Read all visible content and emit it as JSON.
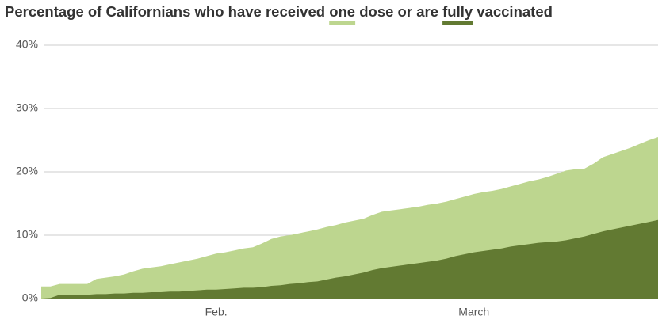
{
  "chart_data": {
    "type": "area",
    "title": "Percentage of Californians who have received one dose or are fully vaccinated",
    "categories": [
      null,
      null,
      null,
      null,
      null,
      null,
      null,
      null,
      null,
      null,
      null,
      null,
      null,
      null,
      null,
      null,
      null,
      null,
      null,
      "Feb.",
      null,
      null,
      null,
      null,
      null,
      null,
      null,
      null,
      null,
      null,
      null,
      null,
      null,
      null,
      null,
      null,
      null,
      null,
      null,
      null,
      null,
      null,
      null,
      null,
      null,
      null,
      null,
      "March",
      null,
      null,
      null,
      null,
      null,
      null,
      null,
      null,
      null,
      null,
      null,
      null,
      null,
      null,
      null,
      null,
      null,
      null,
      null,
      null
    ],
    "series": [
      {
        "name": "one",
        "color": "#bdd68f",
        "values": [
          1.9,
          1.9,
          2.3,
          2.3,
          2.3,
          2.3,
          3.1,
          3.3,
          3.5,
          3.8,
          4.3,
          4.7,
          4.9,
          5.1,
          5.4,
          5.7,
          6.0,
          6.3,
          6.7,
          7.1,
          7.3,
          7.6,
          7.9,
          8.1,
          8.7,
          9.4,
          9.8,
          10.0,
          10.3,
          10.6,
          10.9,
          11.3,
          11.6,
          12.0,
          12.3,
          12.6,
          13.2,
          13.7,
          13.9,
          14.1,
          14.3,
          14.5,
          14.8,
          15.0,
          15.3,
          15.7,
          16.1,
          16.5,
          16.8,
          17.0,
          17.3,
          17.7,
          18.1,
          18.5,
          18.8,
          19.2,
          19.7,
          20.2,
          20.4,
          20.5,
          21.3,
          22.3,
          22.8,
          23.3,
          23.8,
          24.4,
          25.0,
          25.5
        ]
      },
      {
        "name": "fully",
        "color": "#627a32",
        "values": [
          0,
          0.1,
          0.6,
          0.6,
          0.6,
          0.6,
          0.7,
          0.7,
          0.8,
          0.8,
          0.9,
          0.9,
          1.0,
          1.0,
          1.1,
          1.1,
          1.2,
          1.3,
          1.4,
          1.4,
          1.5,
          1.6,
          1.7,
          1.7,
          1.8,
          2.0,
          2.1,
          2.3,
          2.4,
          2.6,
          2.7,
          3.0,
          3.3,
          3.5,
          3.8,
          4.1,
          4.5,
          4.8,
          5.0,
          5.2,
          5.4,
          5.6,
          5.8,
          6.0,
          6.3,
          6.7,
          7.0,
          7.3,
          7.5,
          7.7,
          7.9,
          8.2,
          8.4,
          8.6,
          8.8,
          8.9,
          9.0,
          9.2,
          9.5,
          9.8,
          10.2,
          10.6,
          10.9,
          11.2,
          11.5,
          11.8,
          12.1,
          12.4
        ]
      }
    ],
    "ylim": [
      0,
      40
    ],
    "yticks": [
      {
        "value": 0,
        "label": "0%"
      },
      {
        "value": 10,
        "label": "10%"
      },
      {
        "value": 20,
        "label": "20%"
      },
      {
        "value": 30,
        "label": "30%"
      },
      {
        "value": 40,
        "label": "40%"
      }
    ],
    "grid": true
  }
}
